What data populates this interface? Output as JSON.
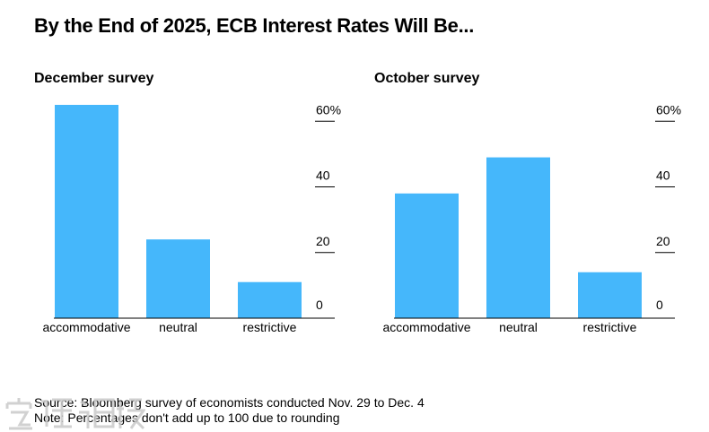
{
  "title": "By the End of 2025, ECB Interest Rates Will Be...",
  "colors": {
    "bar": "#45b7fb",
    "text": "#000000",
    "axis": "#000000",
    "watermark": "#c9c9c9"
  },
  "chart_data": [
    {
      "type": "bar",
      "title": "December survey",
      "categories": [
        "accommodative",
        "neutral",
        "restrictive"
      ],
      "values": [
        65,
        24,
        11
      ],
      "ylim": [
        0,
        65
      ],
      "yticks": [
        0,
        20,
        40,
        60
      ],
      "ytick_labels": [
        "0",
        "20",
        "40",
        "60%"
      ],
      "axis_side": "right",
      "grid": false
    },
    {
      "type": "bar",
      "title": "October survey",
      "categories": [
        "accommodative",
        "neutral",
        "restrictive"
      ],
      "values": [
        38,
        49,
        14
      ],
      "ylim": [
        0,
        65
      ],
      "yticks": [
        0,
        20,
        40,
        60
      ],
      "ytick_labels": [
        "0",
        "20",
        "40",
        "60%"
      ],
      "axis_side": "right",
      "grid": false
    }
  ],
  "footer": {
    "source": "Source: Bloomberg survey of economists conducted Nov. 29 to Dec. 4",
    "note": "Note: Percentages don't add up to 100 due to rounding"
  },
  "watermark_icon": "watermark-logo-icon"
}
